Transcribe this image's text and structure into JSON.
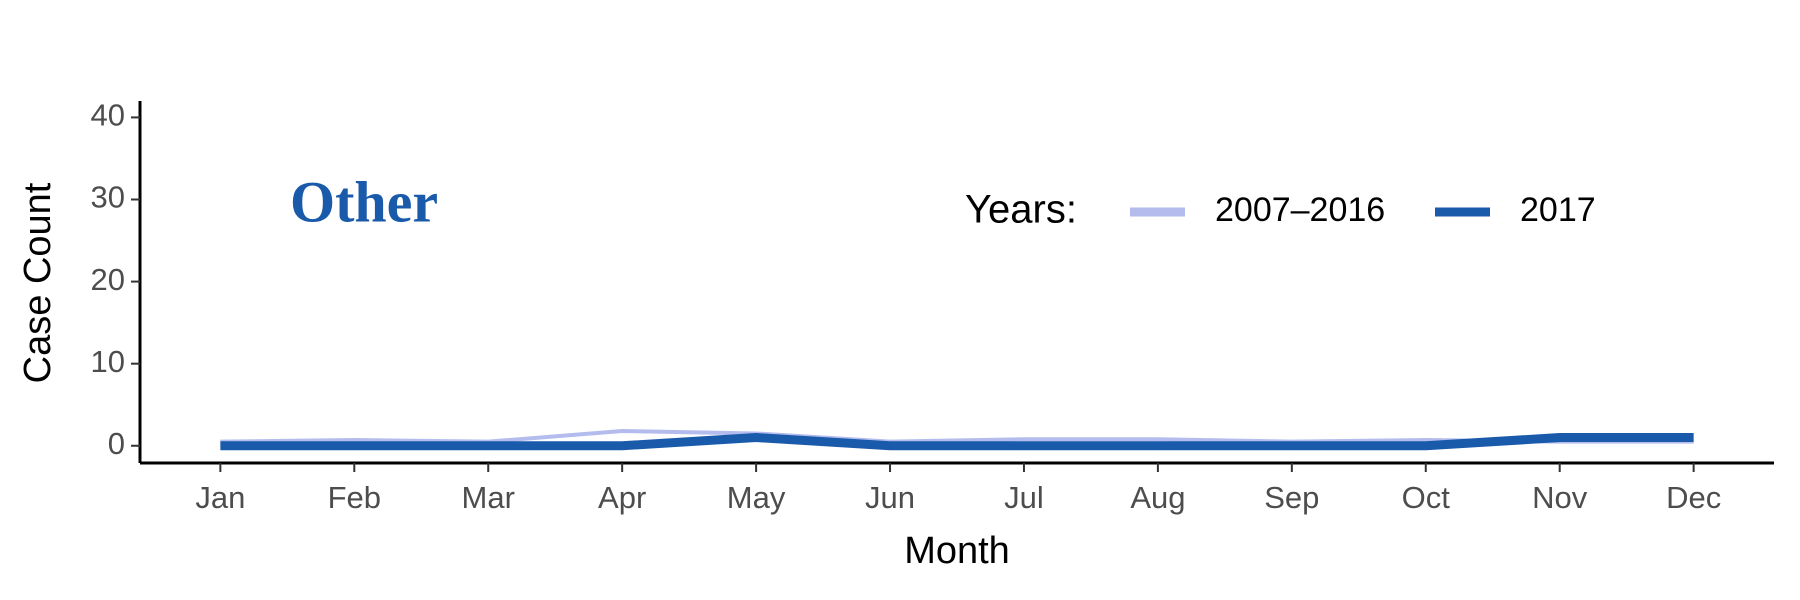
{
  "chart_data": {
    "type": "line",
    "annotation": "Other",
    "x_label": "Month",
    "y_label": "Case Count",
    "legend_title": "Years:",
    "categories": [
      "Jan",
      "Feb",
      "Mar",
      "Apr",
      "May",
      "Jun",
      "Jul",
      "Aug",
      "Sep",
      "Oct",
      "Nov",
      "Dec"
    ],
    "series": [
      {
        "name": "2007–2016",
        "color": "#b3bced",
        "values": [
          0.5,
          0.7,
          0.5,
          1.8,
          1.5,
          0.5,
          0.8,
          0.8,
          0.5,
          0.7,
          0.5,
          0.5
        ]
      },
      {
        "name": "2017",
        "color": "#1a5aab",
        "values": [
          0,
          0,
          0,
          0,
          1,
          0,
          0,
          0,
          0,
          0,
          1,
          1
        ]
      }
    ],
    "ylim": [
      -2.1,
      42
    ],
    "yticks": [
      0,
      10,
      20,
      30,
      40
    ],
    "grid": false,
    "legend_position": "top-right"
  }
}
